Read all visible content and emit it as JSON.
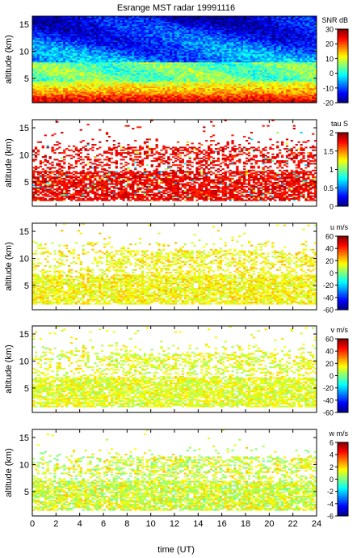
{
  "figure_title": "Esrange MST radar 19991116",
  "xlabel": "time (UT)",
  "x_ticks": [
    "0",
    "2",
    "4",
    "6",
    "8",
    "10",
    "12",
    "14",
    "16",
    "18",
    "20",
    "22",
    "24"
  ],
  "xlim": [
    0,
    24
  ],
  "chart_data": [
    {
      "type": "heatmap",
      "title": "Esrange MST radar 19991116",
      "ylabel": "altitude (km)",
      "ylim": [
        0.5,
        16.5
      ],
      "y_ticks": [
        "5",
        "10",
        "15"
      ],
      "colorbar_label": "SNR dB",
      "colorbar_range": [
        -20,
        30
      ],
      "colorbar_ticks": [
        "30",
        "20",
        "10",
        "0",
        "-10",
        "-20"
      ],
      "pattern": "dense-snr",
      "description_levels": {
        "near_surface": 28,
        "mid": 5,
        "upper": -12
      }
    },
    {
      "type": "heatmap",
      "ylabel": "altitude (km)",
      "ylim": [
        0.5,
        16.5
      ],
      "y_ticks": [
        "5",
        "10",
        "15"
      ],
      "colorbar_label": "tau S",
      "colorbar_range": [
        0,
        2
      ],
      "colorbar_ticks": [
        "2",
        "1.5",
        "1",
        "0.5",
        "0"
      ],
      "pattern": "sparse-tau",
      "typical_value": 1.9
    },
    {
      "type": "heatmap",
      "ylabel": "altitude (km)",
      "ylim": [
        0.5,
        16.5
      ],
      "y_ticks": [
        "5",
        "10",
        "15"
      ],
      "colorbar_label": "u m/s",
      "colorbar_range": [
        -60,
        60
      ],
      "colorbar_ticks": [
        "60",
        "40",
        "20",
        "0",
        "-20",
        "-40",
        "-60"
      ],
      "pattern": "sparse-wind",
      "typical_value": 15
    },
    {
      "type": "heatmap",
      "ylabel": "altitude (km)",
      "ylim": [
        0.5,
        16.5
      ],
      "y_ticks": [
        "5",
        "10",
        "15"
      ],
      "colorbar_label": "v m/s",
      "colorbar_range": [
        -60,
        60
      ],
      "colorbar_ticks": [
        "60",
        "40",
        "20",
        "0",
        "-20",
        "-40",
        "-60"
      ],
      "pattern": "sparse-wind",
      "typical_value": 12
    },
    {
      "type": "heatmap",
      "ylabel": "altitude (km)",
      "ylim": [
        0.5,
        16.5
      ],
      "y_ticks": [
        "5",
        "10",
        "15"
      ],
      "colorbar_label": "w m/s",
      "colorbar_range": [
        -6,
        6
      ],
      "colorbar_ticks": [
        "6",
        "4",
        "2",
        "0",
        "-2",
        "-4",
        "-6"
      ],
      "pattern": "sparse-vertical",
      "typical_value": 1
    }
  ]
}
